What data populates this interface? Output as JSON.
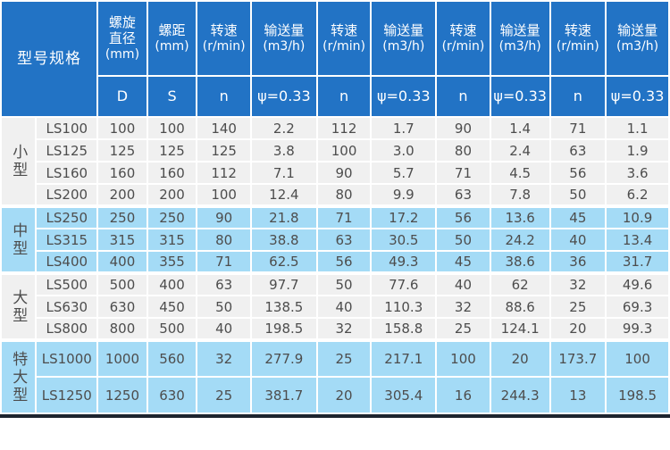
{
  "table": {
    "row_header_title": "型号规格",
    "columns": [
      {
        "line1": "螺旋",
        "line2": "直径",
        "unit": "(mm)",
        "sub": "D"
      },
      {
        "line1": "螺距",
        "unit": "(mm)",
        "sub": "S"
      },
      {
        "line1": "转速",
        "unit": "(r/min)",
        "sub": "n"
      },
      {
        "line1": "输送量",
        "unit": "(m3/h)",
        "sub": "ψ=0.33"
      },
      {
        "line1": "转速",
        "unit": "(r/min)",
        "sub": "n"
      },
      {
        "line1": "输送量",
        "unit": "(m3/h)",
        "sub": "ψ=0.33"
      },
      {
        "line1": "转速",
        "unit": "(r/min)",
        "sub": "n"
      },
      {
        "line1": "输送量",
        "unit": "(m3/h)",
        "sub": "ψ=0.33"
      },
      {
        "line1": "转速",
        "unit": "(r/min)",
        "sub": "n"
      },
      {
        "line1": "输送量",
        "unit": "(m3/h)",
        "sub": "ψ=0.33"
      }
    ],
    "groups": [
      {
        "label": "小型",
        "tone": "gray",
        "tall": false,
        "rows": [
          {
            "model": "LS100",
            "values": [
              "100",
              "100",
              "140",
              "2.2",
              "112",
              "1.7",
              "90",
              "1.4",
              "71",
              "1.1"
            ]
          },
          {
            "model": "LS125",
            "values": [
              "125",
              "125",
              "125",
              "3.8",
              "100",
              "3.0",
              "80",
              "2.4",
              "63",
              "1.9"
            ]
          },
          {
            "model": "LS160",
            "values": [
              "160",
              "160",
              "112",
              "7.1",
              "90",
              "5.7",
              "71",
              "4.5",
              "56",
              "3.6"
            ]
          },
          {
            "model": "LS200",
            "values": [
              "200",
              "200",
              "100",
              "12.4",
              "80",
              "9.9",
              "63",
              "7.8",
              "50",
              "6.2"
            ]
          }
        ]
      },
      {
        "label": "中型",
        "tone": "blue",
        "tall": false,
        "rows": [
          {
            "model": "LS250",
            "values": [
              "250",
              "250",
              "90",
              "21.8",
              "71",
              "17.2",
              "56",
              "13.6",
              "45",
              "10.9"
            ]
          },
          {
            "model": "LS315",
            "values": [
              "315",
              "315",
              "80",
              "38.8",
              "63",
              "30.5",
              "50",
              "24.2",
              "40",
              "13.4"
            ]
          },
          {
            "model": "LS400",
            "values": [
              "400",
              "355",
              "71",
              "62.5",
              "56",
              "49.3",
              "45",
              "38.6",
              "36",
              "31.7"
            ]
          }
        ]
      },
      {
        "label": "大型",
        "tone": "gray",
        "tall": false,
        "rows": [
          {
            "model": "LS500",
            "values": [
              "500",
              "400",
              "63",
              "97.7",
              "50",
              "77.6",
              "40",
              "62",
              "32",
              "49.6"
            ]
          },
          {
            "model": "LS630",
            "values": [
              "630",
              "450",
              "50",
              "138.5",
              "40",
              "110.3",
              "32",
              "88.6",
              "25",
              "69.3"
            ]
          },
          {
            "model": "LS800",
            "values": [
              "800",
              "500",
              "40",
              "198.5",
              "32",
              "158.8",
              "25",
              "124.1",
              "20",
              "99.3"
            ]
          }
        ]
      },
      {
        "label": "特大型",
        "tone": "blue",
        "tall": true,
        "rows": [
          {
            "model": "LS1000",
            "values": [
              "1000",
              "560",
              "32",
              "277.9",
              "25",
              "217.1",
              "100",
              "20",
              "173.7",
              "100"
            ]
          },
          {
            "model": "LS1250",
            "values": [
              "1250",
              "630",
              "25",
              "381.7",
              "20",
              "305.4",
              "16",
              "244.3",
              "13",
              "198.5"
            ]
          }
        ]
      }
    ],
    "colors": {
      "header_bg": "#2273c5",
      "header_text": "#ffffff",
      "row_blue": "#a4dbf6",
      "row_gray": "#f0f0f0",
      "grid": "#ffffff",
      "body_text": "#4d4d4d",
      "bottom_bar": "#1d242e"
    }
  }
}
